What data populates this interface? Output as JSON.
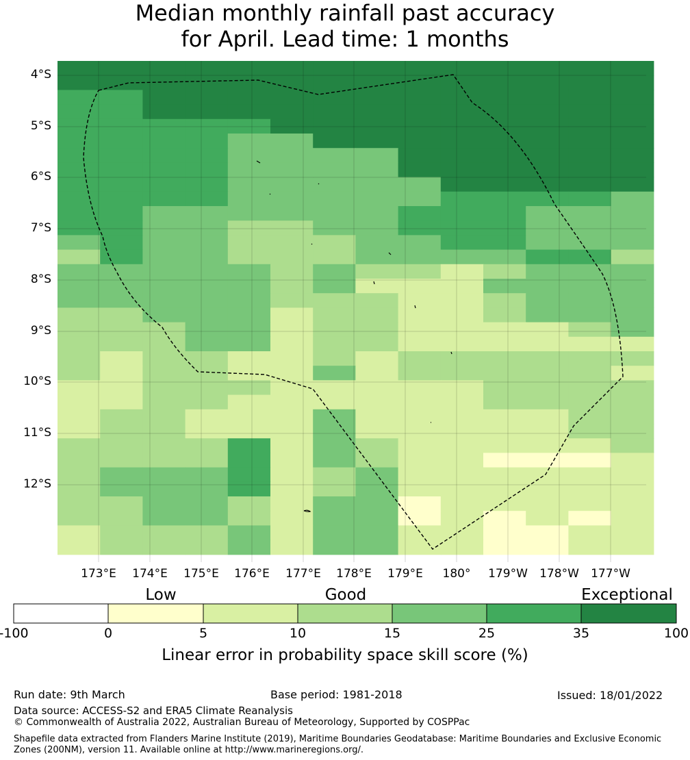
{
  "title": {
    "line1": "Median monthly rainfall past accuracy",
    "line2": "for April. Lead time: 1 months"
  },
  "map": {
    "lat_labels": [
      "4°S",
      "5°S",
      "6°S",
      "7°S",
      "8°S",
      "9°S",
      "10°S",
      "11°S",
      "12°S"
    ],
    "lon_labels": [
      "173°E",
      "174°E",
      "175°E",
      "176°E",
      "177°E",
      "178°E",
      "179°E",
      "180°",
      "179°W",
      "178°W",
      "177°W"
    ],
    "grid_colors_legend": {
      "b0": "#ffffcc",
      "b1": "#d9f0a3",
      "b2": "#addd8e",
      "b3": "#78c679",
      "b4": "#41ab5d",
      "b5": "#238443"
    },
    "grid_rows": [
      "55555555555555",
      "55555555555555",
      "44555555555555",
      "44555555555555",
      "44444555555555",
      "44443355555555",
      "44443333555555",
      "44443333555555",
      "44443333355555",
      "44443333344443",
      "44333333444333",
      "44332233444333",
      "34332223344333",
      "24332223333442",
      "33333232212333",
      "33333231113333",
      "33333222112333",
      "22333122112333",
      "22233122111123",
      "22233122111111",
      "21221121222222",
      "21221131222221",
      "11222111112222",
      "11221111112222",
      "12211131111122",
      "12211131111122",
      "22224132111112",
      "22224132110001",
      "23334123111111",
      "23334123111111",
      "22332133011111",
      "22332133010101",
      "12223133110011",
      "12223133110011"
    ]
  },
  "legend": {
    "categories": [
      "Low",
      "Good",
      "Exceptional"
    ],
    "boundaries": [
      "-100",
      "0",
      "5",
      "10",
      "15",
      "25",
      "35",
      "100"
    ],
    "colors": [
      "#ffffff",
      "#ffffcc",
      "#d9f0a3",
      "#addd8e",
      "#78c679",
      "#41ab5d",
      "#238443"
    ],
    "title": "Linear error in probability space skill score (%)"
  },
  "footer": {
    "run_date": "Run date: 9th March",
    "base_period": "Base period: 1981-2018",
    "issued": "Issued: 18/01/2022",
    "data_source": "Data source: ACCESS-S2 and ERA5 Climate Reanalysis",
    "copyright": "© Commonwealth of Australia 2022, Australian Bureau of Meteorology, Supported by COSPPac",
    "shapefile": "Shapefile data extracted from Flanders Marine Institute (2019), Maritime Boundaries Geodatabase: Maritime Boundaries and Exclusive Economic Zones (200NM), version 11. Available online at http://www.marineregions.org/."
  }
}
